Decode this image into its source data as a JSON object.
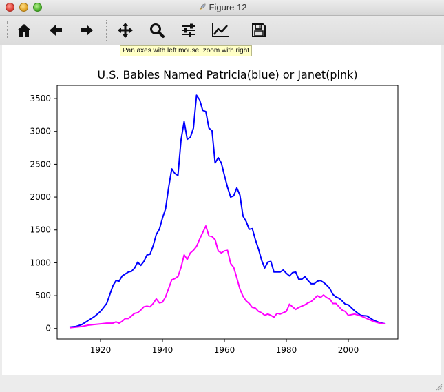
{
  "window": {
    "title": "Figure 12"
  },
  "toolbar": {
    "buttons": [
      {
        "name": "home-button",
        "icon": "home-icon"
      },
      {
        "name": "back-button",
        "icon": "arrow-left-icon"
      },
      {
        "name": "forward-button",
        "icon": "arrow-right-icon"
      },
      {
        "name": "pan-button",
        "icon": "move-icon"
      },
      {
        "name": "zoom-button",
        "icon": "magnifier-icon"
      },
      {
        "name": "subplots-button",
        "icon": "sliders-icon"
      },
      {
        "name": "edit-axes-button",
        "icon": "line-chart-icon"
      },
      {
        "name": "save-button",
        "icon": "floppy-disk-icon"
      }
    ],
    "tooltip": "Pan axes with left mouse, zoom with right"
  },
  "chart_data": {
    "type": "line",
    "title": "U.S. Babies Named Patricia(blue) or Janet(pink)",
    "xlabel": "",
    "ylabel": "",
    "xlim": [
      1906,
      2016
    ],
    "ylim": [
      -160,
      3700
    ],
    "xticks": [
      1920,
      1940,
      1960,
      1980,
      2000
    ],
    "yticks": [
      0,
      500,
      1000,
      1500,
      2000,
      2500,
      3000,
      3500
    ],
    "grid": false,
    "series": [
      {
        "color": "#0000ff",
        "x": [
          1910,
          1912,
          1914,
          1916,
          1918,
          1920,
          1922,
          1924,
          1925,
          1926,
          1927,
          1928,
          1929,
          1930,
          1931,
          1932,
          1933,
          1934,
          1935,
          1936,
          1937,
          1938,
          1939,
          1940,
          1941,
          1942,
          1943,
          1944,
          1945,
          1946,
          1947,
          1948,
          1949,
          1950,
          1951,
          1952,
          1953,
          1954,
          1955,
          1956,
          1957,
          1958,
          1959,
          1960,
          1961,
          1962,
          1963,
          1964,
          1965,
          1966,
          1967,
          1968,
          1969,
          1970,
          1971,
          1972,
          1973,
          1974,
          1975,
          1976,
          1977,
          1978,
          1979,
          1980,
          1981,
          1982,
          1983,
          1984,
          1985,
          1986,
          1987,
          1988,
          1989,
          1990,
          1991,
          1992,
          1993,
          1994,
          1995,
          1996,
          1997,
          1998,
          1999,
          2000,
          2002,
          2004,
          2006,
          2008,
          2010,
          2012
        ],
        "values": [
          20,
          30,
          60,
          120,
          180,
          260,
          380,
          650,
          730,
          720,
          800,
          830,
          860,
          870,
          920,
          1010,
          960,
          1020,
          1120,
          1130,
          1260,
          1430,
          1510,
          1680,
          1820,
          2150,
          2430,
          2360,
          2330,
          2870,
          3150,
          2880,
          2910,
          3050,
          3550,
          3480,
          3320,
          3300,
          3050,
          3010,
          2520,
          2600,
          2520,
          2330,
          2150,
          2000,
          2020,
          2140,
          2030,
          1710,
          1630,
          1510,
          1520,
          1350,
          1210,
          1040,
          920,
          1010,
          1020,
          860,
          860,
          860,
          890,
          840,
          800,
          850,
          860,
          750,
          750,
          790,
          730,
          680,
          680,
          720,
          730,
          700,
          660,
          610,
          520,
          480,
          460,
          420,
          370,
          360,
          270,
          200,
          190,
          130,
          90,
          70
        ]
      },
      {
        "color": "#ff00ff",
        "x": [
          1910,
          1912,
          1914,
          1916,
          1918,
          1920,
          1922,
          1924,
          1925,
          1926,
          1927,
          1928,
          1929,
          1930,
          1931,
          1932,
          1933,
          1934,
          1935,
          1936,
          1937,
          1938,
          1939,
          1940,
          1941,
          1942,
          1943,
          1944,
          1945,
          1946,
          1947,
          1948,
          1949,
          1950,
          1951,
          1952,
          1953,
          1954,
          1955,
          1956,
          1957,
          1958,
          1959,
          1960,
          1961,
          1962,
          1963,
          1964,
          1965,
          1966,
          1967,
          1968,
          1969,
          1970,
          1971,
          1972,
          1973,
          1974,
          1975,
          1976,
          1977,
          1978,
          1979,
          1980,
          1981,
          1982,
          1983,
          1984,
          1985,
          1986,
          1987,
          1988,
          1989,
          1990,
          1991,
          1992,
          1993,
          1994,
          1995,
          1996,
          1997,
          1998,
          1999,
          2000,
          2002,
          2004,
          2006,
          2008,
          2010,
          2012
        ],
        "values": [
          10,
          20,
          30,
          50,
          60,
          70,
          80,
          80,
          100,
          80,
          110,
          150,
          150,
          190,
          230,
          240,
          280,
          330,
          340,
          330,
          380,
          450,
          390,
          400,
          480,
          610,
          740,
          760,
          790,
          930,
          1120,
          1050,
          1150,
          1190,
          1250,
          1360,
          1460,
          1560,
          1410,
          1400,
          1350,
          1180,
          1150,
          1180,
          1190,
          990,
          930,
          770,
          600,
          490,
          420,
          380,
          320,
          310,
          260,
          240,
          200,
          220,
          200,
          170,
          230,
          220,
          240,
          260,
          370,
          330,
          290,
          320,
          340,
          360,
          390,
          410,
          450,
          500,
          470,
          510,
          470,
          450,
          380,
          380,
          330,
          280,
          260,
          200,
          220,
          190,
          150,
          110,
          80,
          70
        ]
      }
    ]
  }
}
